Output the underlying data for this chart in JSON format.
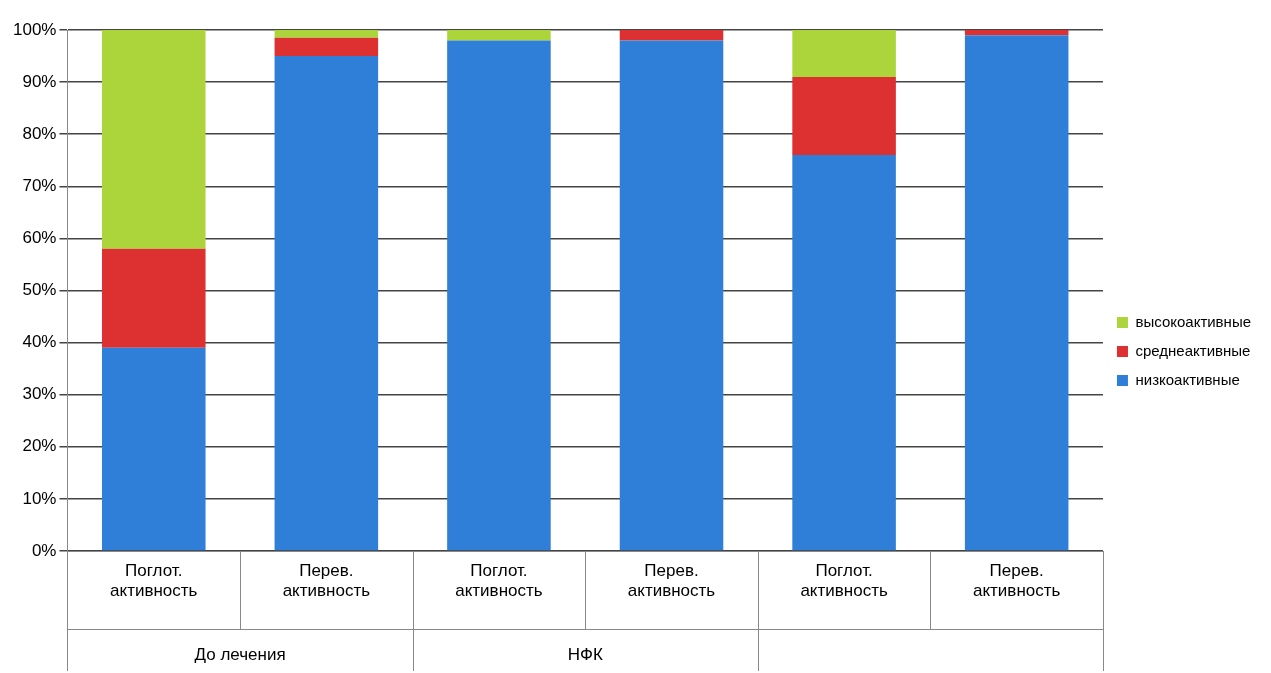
{
  "chart_data": {
    "type": "bar",
    "stacked": true,
    "categories": [
      "Поглот. активность",
      "Перев. активность",
      "Поглот. активность",
      "Перев. активность",
      "Поглот. активность",
      "Перев. активность"
    ],
    "series": [
      {
        "name": "низкоактивные",
        "color": "#2f7fd8",
        "values": [
          39,
          95,
          98,
          98,
          76,
          99
        ]
      },
      {
        "name": "среднеактивные",
        "color": "#dd3030",
        "values": [
          19,
          3.5,
          0,
          2,
          15,
          1
        ]
      },
      {
        "name": "высокоактивные",
        "color": "#acd53c",
        "values": [
          42,
          1.5,
          2,
          0,
          9,
          0
        ]
      }
    ],
    "ylim": [
      0,
      100
    ],
    "yticks": [
      {
        "value": 0,
        "label": "0%"
      },
      {
        "value": 10,
        "label": "10%"
      },
      {
        "value": 20,
        "label": "20%"
      },
      {
        "value": 30,
        "label": "30%"
      },
      {
        "value": 40,
        "label": "40%"
      },
      {
        "value": 50,
        "label": "50%"
      },
      {
        "value": 60,
        "label": "60%"
      },
      {
        "value": 70,
        "label": "70%"
      },
      {
        "value": 80,
        "label": "80%"
      },
      {
        "value": 90,
        "label": "90%"
      },
      {
        "value": 100,
        "label": "100%"
      }
    ],
    "grid": "y",
    "legend": "right",
    "annotations": [
      "До лечения",
      "НФК"
    ]
  }
}
